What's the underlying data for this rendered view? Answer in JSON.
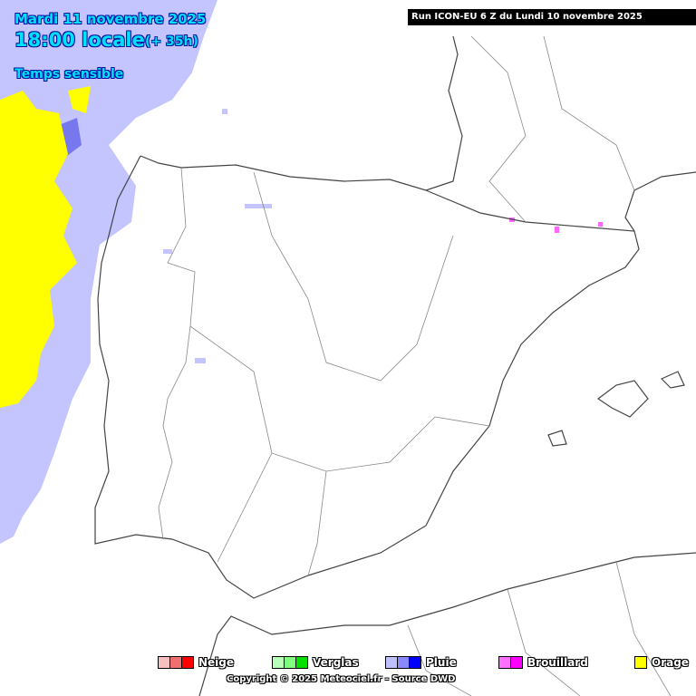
{
  "header": {
    "date": "Mardi 11 novembre 2025",
    "time": "18:00 locale",
    "lead": "(+ 35h)",
    "parameter": "Temps sensible",
    "run": "Run ICON-EU 6 Z du Lundi 10 novembre 2025"
  },
  "legend": {
    "items": [
      "Neige",
      "Verglas",
      "Pluie",
      "Brouillard",
      "Orage"
    ]
  },
  "footer": {
    "copyright": "Copyright © 2025 Meteociel.fr - Source DWD"
  }
}
